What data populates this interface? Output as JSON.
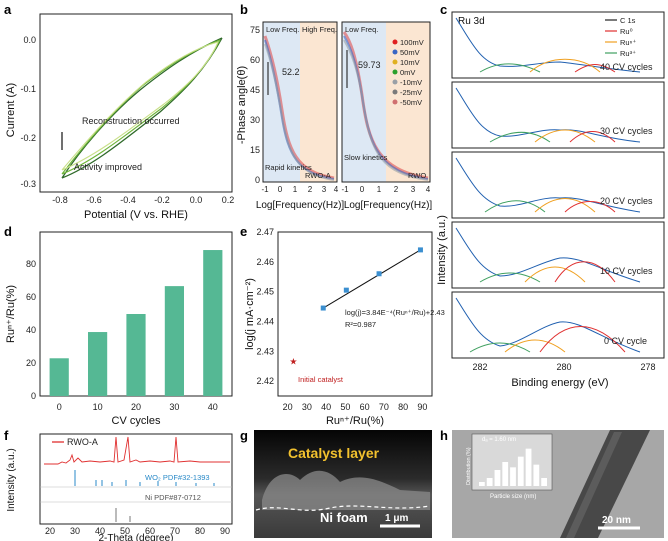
{
  "panels": {
    "a": {
      "letter": "a",
      "ylabel": "Current (A)",
      "xlabel": "Potential (V vs. RHE)",
      "yticks": [
        "0.0",
        "-0.1",
        "-0.2",
        "-0.3"
      ],
      "xticks": [
        "-0.8",
        "-0.6",
        "-0.4",
        "-0.2",
        "0.0",
        "0.2"
      ],
      "annot_top": "Reconstruction occurred",
      "annot_bottom": "Activity improved"
    },
    "b": {
      "letter": "b",
      "ylabel": "-Phase angle(θ)",
      "xlabel": "Log[Frequency(Hz)]",
      "yticks": [
        "75",
        "60",
        "45",
        "30",
        "15",
        "0"
      ],
      "xticks": [
        "-1",
        "0",
        "1",
        "2",
        "3",
        "4"
      ],
      "xticks2": [
        "-1",
        "0",
        "1",
        "2",
        "3",
        "4"
      ],
      "low": "Low Freq.",
      "high": "High Freq.",
      "left_value": "52.2",
      "right_value": "59.73",
      "left_kin": "Rapid kinetics",
      "right_kin": "Slow kinetics",
      "left_name": "RWO-A",
      "right_name": "RWO",
      "legend": [
        "100mV",
        "50mV",
        "10mV",
        "0mV",
        "-10mV",
        "-25mV",
        "-50mV"
      ],
      "legend_colors": [
        "#e02020",
        "#3a66c4",
        "#e0b020",
        "#2ca02c",
        "#9aa0a6",
        "#7a7a7a",
        "#d07070"
      ]
    },
    "c": {
      "letter": "c",
      "title": "Ru 3d",
      "ylabel": "Intensity (a.u.)",
      "xlabel": "Binding energy (eV)",
      "xticks": [
        "282",
        "280",
        "278"
      ],
      "legend": [
        "C 1s",
        "Ru⁰",
        "Ruⁿ⁺",
        "Ru³⁺"
      ],
      "legend_colors": [
        "#222222",
        "#e03030",
        "#f0a020",
        "#40a060"
      ],
      "cycles": [
        "40 CV cycles",
        "30 CV cycles",
        "20 CV cycles",
        "10 CV cycles",
        "0 CV cycle"
      ]
    },
    "d": {
      "letter": "d",
      "ylabel": "Ruⁿ⁺/Ru(%)",
      "xlabel": "CV cycles",
      "yticks": [
        "0",
        "20",
        "40",
        "60",
        "80"
      ]
    },
    "e": {
      "letter": "e",
      "ylabel": "log(j mA·cm⁻²)",
      "xlabel": "Ruⁿ⁺/Ru(%)",
      "yticks": [
        "2.47",
        "2.46",
        "2.45",
        "2.44",
        "2.43",
        "2.42"
      ],
      "xticks": [
        "20",
        "30",
        "40",
        "50",
        "60",
        "70",
        "80",
        "90"
      ],
      "eq1": "log(j)=3.84E⁻⁴(Ruⁿ⁺/Ru)+2.43",
      "eq2": "R²=0.987",
      "initial": "Initial catalyst"
    },
    "f": {
      "letter": "f",
      "ylabel": "Intensity (a.u.)",
      "xlabel": "2-Theta (degree)",
      "xticks": [
        "20",
        "30",
        "40",
        "50",
        "60",
        "70",
        "80",
        "90"
      ],
      "legend": "RWO-A",
      "ref1": "WO₂ PDF#32-1393",
      "ref2": "Ni PDF#87-0712"
    },
    "g": {
      "letter": "g",
      "catalyst": "Catalyst layer",
      "foam": "Ni foam",
      "scale": "1 μm"
    },
    "h": {
      "letter": "h",
      "scale": "20 nm",
      "inset_ylabel": "Distribution (%)",
      "inset_xlabel": "Particle size (nm)",
      "inset_note": "dₐ = 1.60 nm",
      "inset_xticks": [
        "0.0",
        "0.5",
        "1.0",
        "1.5",
        "2.0",
        "2.5",
        "3.0"
      ]
    }
  },
  "chart_data": [
    {
      "type": "bar",
      "panel": "d",
      "categories": [
        "0",
        "10",
        "20",
        "30",
        "40"
      ],
      "values": [
        23,
        39,
        50,
        67,
        89
      ],
      "xlabel": "CV cycles",
      "ylabel": "Ruⁿ⁺/Ru(%)",
      "ylim": [
        0,
        100
      ],
      "color": "#55b894"
    },
    {
      "type": "scatter",
      "panel": "e",
      "x": [
        38.5,
        50.5,
        67.5,
        89
      ],
      "y": [
        2.4445,
        2.4505,
        2.456,
        2.464
      ],
      "initial": {
        "x": 23,
        "y": 2.4265
      },
      "xlim": [
        15,
        95
      ],
      "ylim": [
        2.415,
        2.47
      ],
      "xlabel": "Ruⁿ⁺/Ru(%)",
      "ylabel": "log(j mA·cm⁻²)"
    },
    {
      "type": "bar",
      "panel": "h-inset",
      "categories": [
        "0.5",
        "0.75",
        "1.0",
        "1.25",
        "1.5",
        "1.75",
        "2.0",
        "2.25",
        "2.5"
      ],
      "values": [
        3,
        6,
        12,
        18,
        14,
        22,
        28,
        16,
        6
      ],
      "xlabel": "Particle size (nm)",
      "ylabel": "Distribution (%)"
    }
  ]
}
